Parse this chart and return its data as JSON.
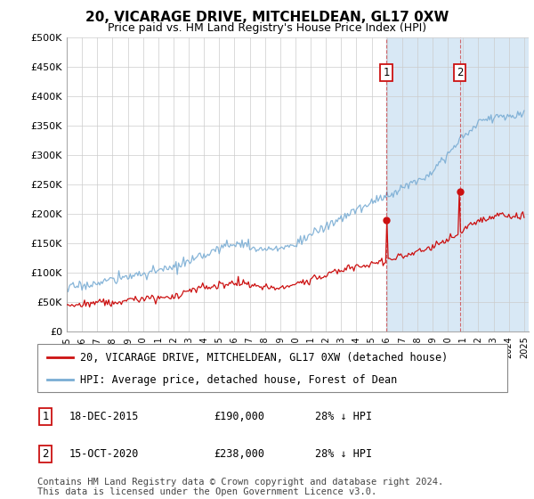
{
  "title": "20, VICARAGE DRIVE, MITCHELDEAN, GL17 0XW",
  "subtitle": "Price paid vs. HM Land Registry's House Price Index (HPI)",
  "ylim": [
    0,
    500000
  ],
  "yticks": [
    0,
    50000,
    100000,
    150000,
    200000,
    250000,
    300000,
    350000,
    400000,
    450000,
    500000
  ],
  "ytick_labels": [
    "£0",
    "£50K",
    "£100K",
    "£150K",
    "£200K",
    "£250K",
    "£300K",
    "£350K",
    "£400K",
    "£450K",
    "£500K"
  ],
  "hpi_color": "#7aadd4",
  "price_color": "#cc1111",
  "shade_color": "#d8e8f5",
  "legend_label_red": "20, VICARAGE DRIVE, MITCHELDEAN, GL17 0XW (detached house)",
  "legend_label_blue": "HPI: Average price, detached house, Forest of Dean",
  "sale1_year": 2015.96,
  "sale1_date": "18-DEC-2015",
  "sale1_price": "£190,000",
  "sale1_hpi": "28% ↓ HPI",
  "sale1_price_val": 190000,
  "sale2_year": 2020.79,
  "sale2_date": "15-OCT-2020",
  "sale2_price": "£238,000",
  "sale2_hpi": "28% ↓ HPI",
  "sale2_price_val": 238000,
  "footer": "Contains HM Land Registry data © Crown copyright and database right 2024.\nThis data is licensed under the Open Government Licence v3.0.",
  "title_fontsize": 11,
  "subtitle_fontsize": 9,
  "tick_fontsize": 8,
  "legend_fontsize": 8.5,
  "table_fontsize": 8.5,
  "footer_fontsize": 7.5
}
